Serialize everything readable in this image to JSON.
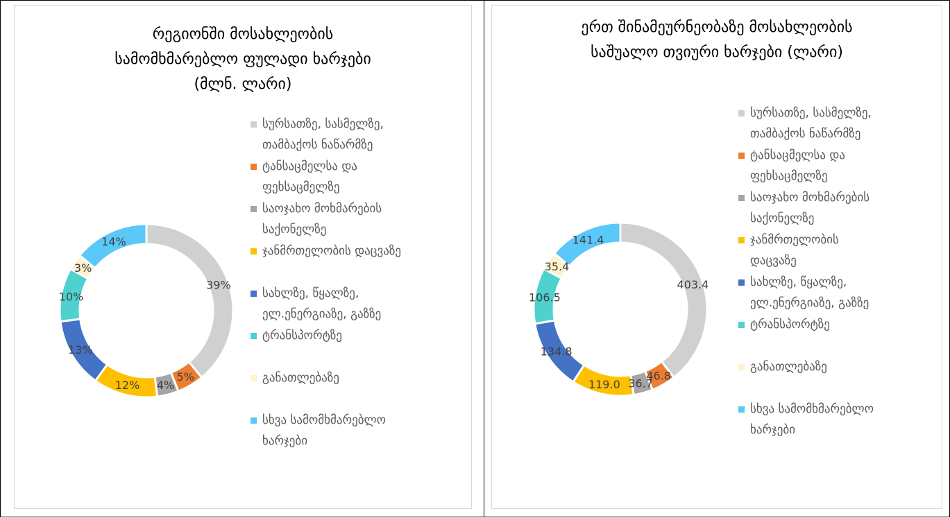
{
  "colors": [
    "#d0d0d0",
    "#ed7d31",
    "#a5a5a5",
    "#ffc000",
    "#4472c4",
    "#4fd1cf",
    "#fff2cc",
    "#5bc8fa"
  ],
  "legend": [
    "სურსათზე, სასმელზე, თამბაქოს ნაწარმზე",
    "ტანსაცმელსა და ფეხსაცმელზე",
    "საოჯახო მოხმარების საქონელზე",
    "ჯანმრთელობის დაცვაზე",
    "სახლზე, წყალზე, ელ.ენერგიაზე, გაზზე",
    "ტრანსპორტზე",
    "განათლებაზე",
    "სხვა სამომხმარებლო ხარჯები"
  ],
  "chart_data": [
    {
      "type": "pie",
      "title": "რეგიონში მოსახლეობის სამომხმარებლო ფულადი ხარჯები (მლნ. ლარი)",
      "title_lines": [
        "რეგიონში მოსახლეობის",
        "სამომხმარებლო ფულადი ხარჯები",
        "(მლნ. ლარი)"
      ],
      "values": [
        39,
        5,
        4,
        12,
        13,
        10,
        3,
        14
      ],
      "labels": [
        "39%",
        "5%",
        "4%",
        "12%",
        "13%",
        "10%",
        "3%",
        "14%"
      ],
      "legend_lines": [
        [
          "სურსათზე, სასმელზე,",
          "თამბაქოს ნაწარმზე"
        ],
        [
          "ტანსაცმელსა და",
          "ფეხსაცმელზე"
        ],
        [
          "საოჯახო მოხმარების",
          "საქონელზე"
        ],
        [
          "ჯანმრთელობის დაცვაზე"
        ],
        [
          "სახლზე, წყალზე,",
          "ელ.ენერგიაზე, გაზზე"
        ],
        [
          "ტრანსპორტზე"
        ],
        [
          "განათლებაზე"
        ],
        [
          "სხვა სამომხმარებლო",
          "ხარჯები"
        ]
      ],
      "legend_position": "right"
    },
    {
      "type": "pie",
      "title": "ერთ შინამეურნეობაზე მოსახლეობის საშუალო თვიური ხარჯები (ლარი)",
      "title_lines": [
        "ერთ შინამეურნეობაზე მოსახლეობის",
        "საშუალო თვიური ხარჯები (ლარი)"
      ],
      "values": [
        403.4,
        46.8,
        36.7,
        119.0,
        134.8,
        106.5,
        35.4,
        141.4
      ],
      "labels": [
        "403.4",
        "46.8",
        "36.7",
        "119.0",
        "134.8",
        "106.5",
        "35.4",
        "141.4"
      ],
      "legend_lines": [
        [
          "სურსათზე, სასმელზე,",
          "თამბაქოს ნაწარმზე"
        ],
        [
          "ტანსაცმელსა და",
          "ფეხსაცმელზე"
        ],
        [
          "საოჯახო მოხმარების",
          "საქონელზე"
        ],
        [
          "ჯანმრთელობის",
          "დაცვაზე"
        ],
        [
          "სახლზე, წყალზე,",
          "ელ.ენერგიაზე, გაზზე"
        ],
        [
          "ტრანსპორტზე"
        ],
        [
          "განათლებაზე"
        ],
        [
          "სხვა სამომხმარებლო",
          "ხარჯები"
        ]
      ],
      "legend_position": "right"
    }
  ]
}
